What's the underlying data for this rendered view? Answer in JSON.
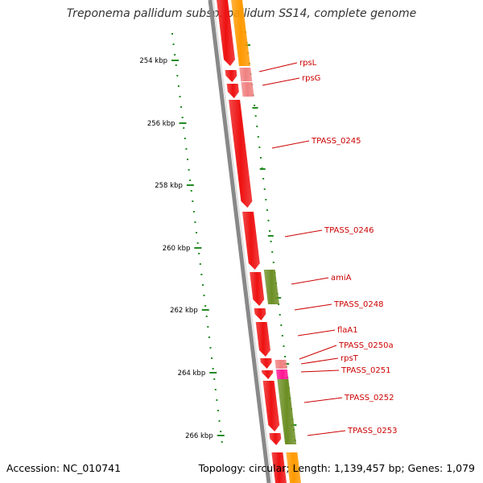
{
  "title": "Treponema pallidum subsp. pallidum SS14, complete genome",
  "footer": {
    "accession": "Accession: NC_010741",
    "summary": "Topology: circular; Length: 1,139,457 bp; Genes: 1,079"
  },
  "colors": {
    "backbone": "#888888",
    "cds": "#ee1111",
    "rna": "#f08080",
    "ami": "#6b8e23",
    "orange": "#ff9900",
    "magenta": "#ff1493",
    "tick": "#228b22",
    "label": "#cc0000"
  },
  "scale": {
    "unit": "kbp",
    "ticks": [
      {
        "kbp": 254,
        "label": "254 kbp"
      },
      {
        "kbp": 256,
        "label": "256 kbp"
      },
      {
        "kbp": 258,
        "label": "258 kbp"
      },
      {
        "kbp": 260,
        "label": "260 kbp"
      },
      {
        "kbp": 262,
        "label": "262 kbp"
      },
      {
        "kbp": 264,
        "label": "264 kbp"
      },
      {
        "kbp": 266,
        "label": "266 kbp"
      }
    ]
  },
  "genes": [
    {
      "name": "rpsL",
      "type": "rna"
    },
    {
      "name": "rpsG",
      "type": "rna"
    },
    {
      "name": "TPASS_0245",
      "type": "cds"
    },
    {
      "name": "TPASS_0246",
      "type": "cds"
    },
    {
      "name": "amiA",
      "type": "ami"
    },
    {
      "name": "TPASS_0248",
      "type": "cds"
    },
    {
      "name": "flaA1",
      "type": "cds"
    },
    {
      "name": "TPASS_0250a",
      "type": "cds"
    },
    {
      "name": "rpsT",
      "type": "rna"
    },
    {
      "name": "TPASS_0251",
      "type": "magenta"
    },
    {
      "name": "TPASS_0252",
      "type": "ami"
    },
    {
      "name": "TPASS_0253",
      "type": "cds"
    }
  ]
}
